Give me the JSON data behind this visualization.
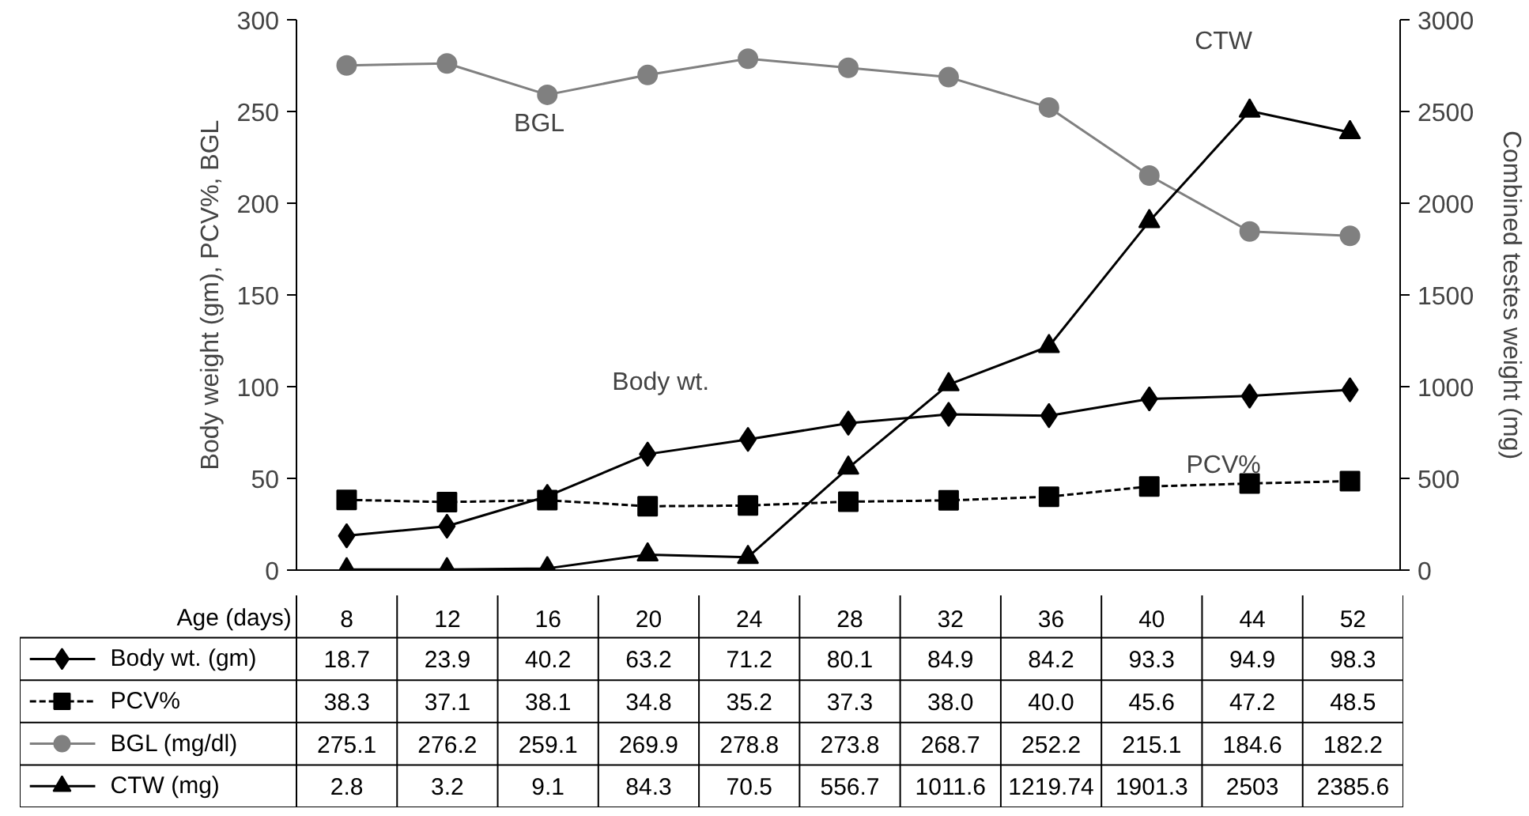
{
  "chart_data": {
    "type": "line",
    "xlabel": "Age (days)",
    "ylabel": "Body weight (gm), PCV%, BGL",
    "y2label": "Combined testes weight (mg)",
    "categories": [
      "8",
      "12",
      "16",
      "20",
      "24",
      "28",
      "32",
      "36",
      "40",
      "44",
      "52"
    ],
    "series": [
      {
        "name": "Body wt. (gm)",
        "color": "#000000",
        "marker": "diamond",
        "line_style": "solid",
        "values": [
          18.7,
          23.9,
          40.2,
          63.2,
          71.2,
          80.1,
          84.9,
          84.2,
          93.3,
          94.9,
          98.3
        ],
        "value_labels": [
          "18.7",
          "23.9",
          "40.2",
          "63.2",
          "71.2",
          "80.1",
          "84.9",
          "84.2",
          "93.3",
          "94.9",
          "98.3"
        ]
      },
      {
        "name": "PCV%",
        "color": "#000000",
        "marker": "square",
        "line_style": "dashed",
        "values": [
          38.3,
          37.1,
          38.1,
          34.8,
          35.2,
          37.3,
          38.0,
          40.0,
          45.6,
          47.2,
          48.5
        ],
        "value_labels": [
          "38.3",
          "37.1",
          "38.1",
          "34.8",
          "35.2",
          "37.3",
          "38.0",
          "40.0",
          "45.6",
          "47.2",
          "48.5"
        ]
      },
      {
        "name": "BGL (mg/dl)",
        "color": "#808080",
        "marker": "circle",
        "line_style": "solid",
        "values": [
          275.1,
          276.2,
          259.1,
          269.9,
          278.8,
          273.8,
          268.7,
          252.2,
          215.1,
          184.6,
          182.2
        ],
        "value_labels": [
          "275.1",
          "276.2",
          "259.1",
          "269.9",
          "278.8",
          "273.8",
          "268.7",
          "252.2",
          "215.1",
          "184.6",
          "182.2"
        ]
      },
      {
        "name": "CTW (mg)",
        "color": "#000000",
        "marker": "triangle",
        "line_style": "solid",
        "axis": "y2",
        "values": [
          2.8,
          3.2,
          9.1,
          84.3,
          70.5,
          556.7,
          1011.6,
          1219.74,
          1901.3,
          2503,
          2385.6
        ],
        "value_labels": [
          "2.8",
          "3.2",
          "9.1",
          "84.3",
          "70.5",
          "556.7",
          "1011.6",
          "1219.74",
          "1901.3",
          "2503",
          "2385.6"
        ]
      }
    ],
    "annotations": [
      "BGL",
      "Body wt.",
      "PCV%",
      "CTW"
    ],
    "ylim": [
      0,
      300
    ],
    "yticks": [
      0,
      50,
      100,
      150,
      200,
      250,
      300
    ],
    "y2lim": [
      0,
      3000
    ],
    "y2ticks": [
      0,
      500,
      1000,
      1500,
      2000,
      2500,
      3000
    ],
    "grid": false,
    "legend": "bottom left"
  }
}
